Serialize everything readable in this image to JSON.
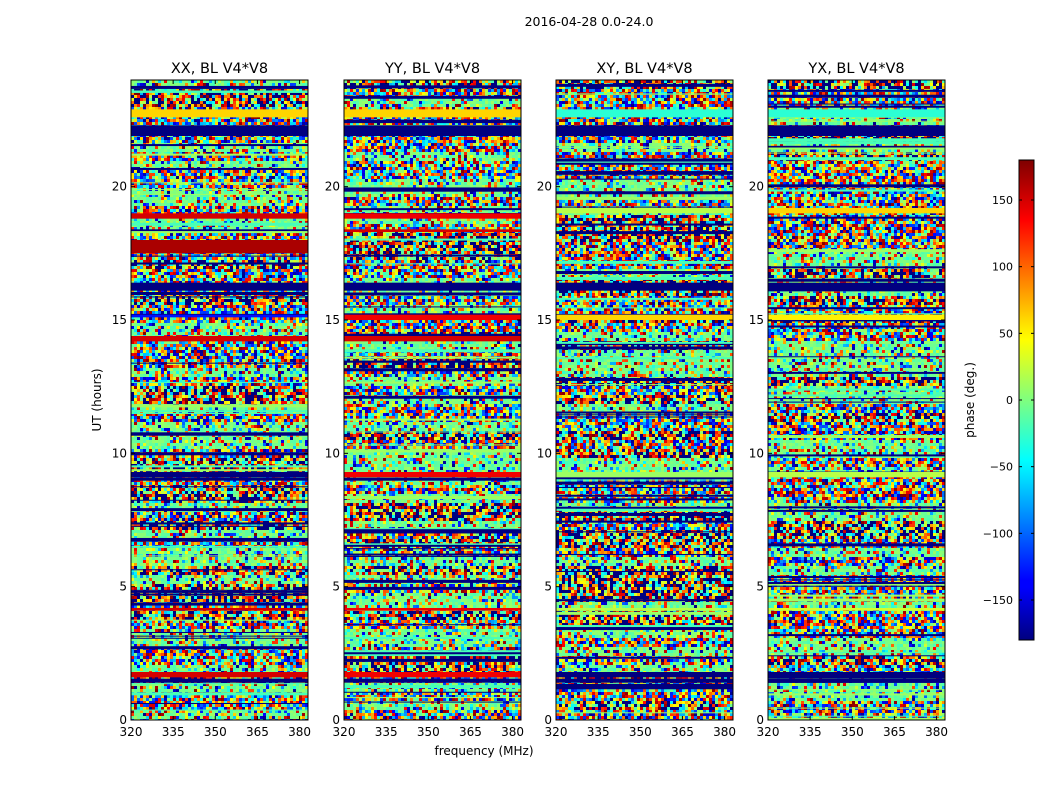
{
  "figure_title": "2016-04-28 0.0-24.0",
  "chart_data": {
    "type": "heatmap",
    "title": "2016-04-28 0.0-24.0",
    "xlabel": "frequency (MHz)",
    "ylabel": "UT (hours)",
    "xlim": [
      320,
      383
    ],
    "ylim": [
      0,
      24
    ],
    "x_ticks": [
      320,
      335,
      350,
      365,
      380
    ],
    "y_ticks": [
      0,
      5,
      10,
      15,
      20
    ],
    "colorbar": {
      "label": "phase (deg.)",
      "range": [
        -180,
        180
      ],
      "ticks": [
        150,
        100,
        50,
        0,
        -50,
        -100,
        -150
      ],
      "tick_labels": [
        "150",
        "100",
        "50",
        "0",
        "−50",
        "−100",
        "−150"
      ],
      "colormap": "jet"
    },
    "panels": [
      {
        "title": "XX, BL V4*V8",
        "bands": [
          {
            "y0": 22.6,
            "y1": 22.9,
            "value": 60
          },
          {
            "y0": 21.9,
            "y1": 22.3,
            "value": -180
          },
          {
            "y0": 18.8,
            "y1": 19.0,
            "value": 150
          },
          {
            "y0": 17.5,
            "y1": 18.0,
            "value": 165
          },
          {
            "y0": 16.1,
            "y1": 16.4,
            "value": -180
          },
          {
            "y0": 15.1,
            "y1": 15.2,
            "value": -130
          },
          {
            "y0": 14.2,
            "y1": 14.4,
            "value": 150
          },
          {
            "y0": 9.1,
            "y1": 9.3,
            "value": -180
          },
          {
            "y0": 4.1,
            "y1": 4.2,
            "value": 150
          },
          {
            "y0": 1.6,
            "y1": 1.8,
            "value": 150
          },
          {
            "y0": 1.4,
            "y1": 1.55,
            "value": -180
          }
        ]
      },
      {
        "title": "YY, BL V4*V8",
        "bands": [
          {
            "y0": 22.6,
            "y1": 22.9,
            "value": 60
          },
          {
            "y0": 21.9,
            "y1": 22.3,
            "value": -180
          },
          {
            "y0": 18.8,
            "y1": 19.0,
            "value": 140
          },
          {
            "y0": 18.3,
            "y1": 18.4,
            "value": 150
          },
          {
            "y0": 16.1,
            "y1": 16.4,
            "value": -180
          },
          {
            "y0": 15.0,
            "y1": 15.2,
            "value": 140
          },
          {
            "y0": 14.2,
            "y1": 14.4,
            "value": 150
          },
          {
            "y0": 9.1,
            "y1": 9.3,
            "value": 140
          },
          {
            "y0": 4.1,
            "y1": 4.2,
            "value": 140
          },
          {
            "y0": 1.6,
            "y1": 1.8,
            "value": 140
          },
          {
            "y0": 1.4,
            "y1": 1.55,
            "value": -180
          }
        ]
      },
      {
        "title": "XY, BL V4*V8",
        "bands": [
          {
            "y0": 22.6,
            "y1": 22.9,
            "value": -30
          },
          {
            "y0": 21.9,
            "y1": 22.3,
            "value": -180
          },
          {
            "y0": 19.0,
            "y1": 19.2,
            "value": 20
          },
          {
            "y0": 16.1,
            "y1": 16.4,
            "value": -180
          },
          {
            "y0": 15.0,
            "y1": 15.2,
            "value": 60
          },
          {
            "y0": 9.1,
            "y1": 9.3,
            "value": 10
          },
          {
            "y0": 4.1,
            "y1": 4.2,
            "value": 20
          },
          {
            "y0": 1.6,
            "y1": 1.8,
            "value": -180
          },
          {
            "y0": 1.4,
            "y1": 1.55,
            "value": -180
          }
        ]
      },
      {
        "title": "YX, BL V4*V8",
        "bands": [
          {
            "y0": 22.6,
            "y1": 22.9,
            "value": -30
          },
          {
            "y0": 21.9,
            "y1": 22.3,
            "value": -180
          },
          {
            "y0": 19.0,
            "y1": 19.2,
            "value": 60
          },
          {
            "y0": 16.1,
            "y1": 16.4,
            "value": -180
          },
          {
            "y0": 15.0,
            "y1": 15.2,
            "value": 50
          },
          {
            "y0": 9.1,
            "y1": 9.3,
            "value": 20
          },
          {
            "y0": 4.1,
            "y1": 4.2,
            "value": 30
          },
          {
            "y0": 1.6,
            "y1": 1.8,
            "value": -180
          },
          {
            "y0": 1.4,
            "y1": 1.55,
            "value": -180
          }
        ]
      }
    ]
  }
}
